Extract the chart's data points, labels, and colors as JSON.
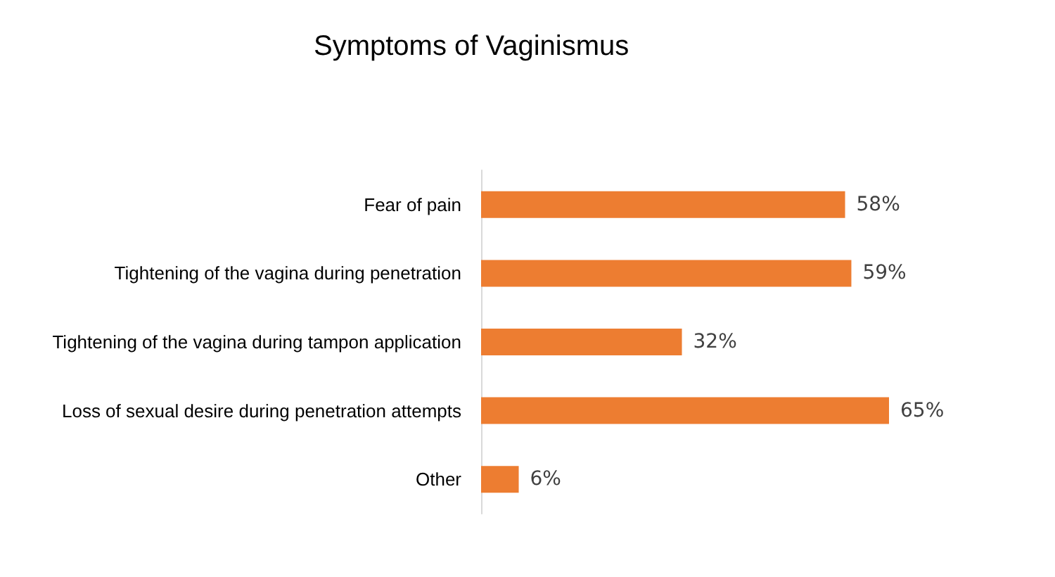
{
  "chart_data": {
    "type": "bar",
    "orientation": "horizontal",
    "title": "Symptoms of Vaginismus",
    "categories": [
      "Fear of pain",
      "Tightening of the vagina during penetration",
      "Tightening of the vagina during tampon application",
      "Loss of sexual desire during penetration attempts",
      "Other"
    ],
    "values": [
      58,
      59,
      32,
      65,
      6
    ],
    "value_labels": [
      "58%",
      "59%",
      "32%",
      "65%",
      "6%"
    ],
    "color": "#ed7d31"
  }
}
